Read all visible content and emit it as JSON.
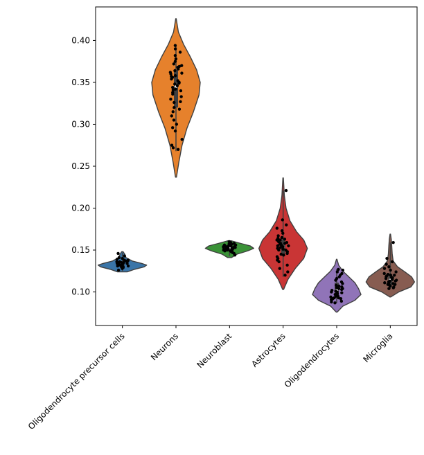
{
  "chart_data": {
    "type": "violin",
    "categories": [
      "Oligodendrocyte precursor cells",
      "Neurons",
      "Neuroblast",
      "Astrocytes",
      "Oligodendrocytes",
      "Microglia"
    ],
    "colors": [
      "#3a75a8",
      "#e6812c",
      "#3a9237",
      "#c93535",
      "#9074b8",
      "#875c51"
    ],
    "ylim": [
      0.06,
      0.44
    ],
    "yticks": [
      0.1,
      0.15,
      0.2,
      0.25,
      0.3,
      0.35,
      0.4
    ],
    "ytick_labels": [
      "0.10",
      "0.15",
      "0.20",
      "0.25",
      "0.30",
      "0.35",
      "0.40"
    ],
    "xlabel": "",
    "ylabel": "",
    "title": "",
    "grid": false,
    "series": [
      {
        "min": 0.125,
        "max": 0.147,
        "q1": 0.13,
        "median": 0.133,
        "q3": 0.137,
        "density": [
          [
            0.124,
            0.2
          ],
          [
            0.127,
            0.5
          ],
          [
            0.13,
            0.9
          ],
          [
            0.132,
            1.0
          ],
          [
            0.134,
            0.8
          ],
          [
            0.137,
            0.4
          ],
          [
            0.141,
            0.15
          ],
          [
            0.145,
            0.1
          ],
          [
            0.148,
            0.03
          ]
        ],
        "points": [
          0.128,
          0.13,
          0.131,
          0.132,
          0.133,
          0.133,
          0.134,
          0.134,
          0.135,
          0.135,
          0.136,
          0.137,
          0.138,
          0.139,
          0.14,
          0.141,
          0.143,
          0.146,
          0.129,
          0.132,
          0.134,
          0.136,
          0.137,
          0.131,
          0.135,
          0.133,
          0.138,
          0.126,
          0.13,
          0.134
        ]
      },
      {
        "min": 0.268,
        "max": 0.395,
        "q1": 0.32,
        "median": 0.345,
        "q3": 0.365,
        "density": [
          [
            0.237,
            0.02
          ],
          [
            0.255,
            0.12
          ],
          [
            0.275,
            0.25
          ],
          [
            0.295,
            0.45
          ],
          [
            0.315,
            0.72
          ],
          [
            0.335,
            0.95
          ],
          [
            0.35,
            1.0
          ],
          [
            0.365,
            0.85
          ],
          [
            0.38,
            0.6
          ],
          [
            0.395,
            0.32
          ],
          [
            0.41,
            0.1
          ],
          [
            0.426,
            0.01
          ]
        ],
        "points": [
          0.27,
          0.272,
          0.275,
          0.282,
          0.292,
          0.296,
          0.3,
          0.305,
          0.31,
          0.318,
          0.32,
          0.326,
          0.33,
          0.333,
          0.336,
          0.34,
          0.342,
          0.344,
          0.346,
          0.348,
          0.35,
          0.352,
          0.354,
          0.356,
          0.358,
          0.36,
          0.362,
          0.364,
          0.366,
          0.368,
          0.37,
          0.372,
          0.375,
          0.378,
          0.382,
          0.386,
          0.39,
          0.394,
          0.315,
          0.338,
          0.349,
          0.357,
          0.341,
          0.369,
          0.327,
          0.361
        ]
      },
      {
        "min": 0.143,
        "max": 0.16,
        "q1": 0.15,
        "median": 0.153,
        "q3": 0.155,
        "density": [
          [
            0.141,
            0.08
          ],
          [
            0.145,
            0.3
          ],
          [
            0.149,
            0.75
          ],
          [
            0.152,
            1.0
          ],
          [
            0.155,
            0.85
          ],
          [
            0.158,
            0.45
          ],
          [
            0.161,
            0.08
          ]
        ],
        "points": [
          0.144,
          0.146,
          0.147,
          0.148,
          0.149,
          0.15,
          0.15,
          0.151,
          0.151,
          0.152,
          0.152,
          0.153,
          0.153,
          0.153,
          0.154,
          0.154,
          0.155,
          0.155,
          0.156,
          0.156,
          0.157,
          0.158,
          0.159,
          0.16,
          0.149,
          0.152,
          0.154,
          0.151,
          0.153,
          0.155,
          0.15,
          0.157
        ]
      },
      {
        "min": 0.118,
        "max": 0.221,
        "q1": 0.143,
        "median": 0.154,
        "q3": 0.163,
        "density": [
          [
            0.103,
            0.02
          ],
          [
            0.115,
            0.2
          ],
          [
            0.128,
            0.5
          ],
          [
            0.14,
            0.85
          ],
          [
            0.152,
            1.0
          ],
          [
            0.162,
            0.85
          ],
          [
            0.172,
            0.55
          ],
          [
            0.185,
            0.28
          ],
          [
            0.2,
            0.12
          ],
          [
            0.215,
            0.05
          ],
          [
            0.236,
            0.01
          ]
        ],
        "points": [
          0.12,
          0.124,
          0.128,
          0.132,
          0.136,
          0.138,
          0.14,
          0.142,
          0.144,
          0.146,
          0.148,
          0.15,
          0.151,
          0.152,
          0.153,
          0.154,
          0.155,
          0.156,
          0.157,
          0.158,
          0.159,
          0.16,
          0.161,
          0.162,
          0.163,
          0.164,
          0.165,
          0.167,
          0.17,
          0.173,
          0.176,
          0.18,
          0.186,
          0.221,
          0.145,
          0.155,
          0.15,
          0.158,
          0.162
        ]
      },
      {
        "min": 0.087,
        "max": 0.127,
        "q1": 0.093,
        "median": 0.102,
        "q3": 0.111,
        "density": [
          [
            0.076,
            0.02
          ],
          [
            0.083,
            0.25
          ],
          [
            0.09,
            0.75
          ],
          [
            0.097,
            1.0
          ],
          [
            0.104,
            0.9
          ],
          [
            0.111,
            0.75
          ],
          [
            0.118,
            0.5
          ],
          [
            0.125,
            0.25
          ],
          [
            0.132,
            0.08
          ],
          [
            0.139,
            0.01
          ]
        ],
        "points": [
          0.087,
          0.088,
          0.089,
          0.09,
          0.091,
          0.092,
          0.093,
          0.094,
          0.095,
          0.096,
          0.097,
          0.098,
          0.099,
          0.1,
          0.101,
          0.102,
          0.103,
          0.104,
          0.105,
          0.106,
          0.107,
          0.108,
          0.11,
          0.112,
          0.114,
          0.116,
          0.118,
          0.12,
          0.122,
          0.124,
          0.126,
          0.127,
          0.092,
          0.095,
          0.1,
          0.104,
          0.098,
          0.093
        ]
      },
      {
        "min": 0.104,
        "max": 0.159,
        "q1": 0.108,
        "median": 0.114,
        "q3": 0.121,
        "density": [
          [
            0.094,
            0.02
          ],
          [
            0.1,
            0.35
          ],
          [
            0.106,
            0.85
          ],
          [
            0.112,
            1.0
          ],
          [
            0.118,
            0.88
          ],
          [
            0.124,
            0.6
          ],
          [
            0.13,
            0.3
          ],
          [
            0.137,
            0.12
          ],
          [
            0.145,
            0.08
          ],
          [
            0.155,
            0.06
          ],
          [
            0.163,
            0.04
          ],
          [
            0.169,
            0.01
          ]
        ],
        "points": [
          0.104,
          0.105,
          0.106,
          0.107,
          0.108,
          0.109,
          0.11,
          0.111,
          0.112,
          0.113,
          0.114,
          0.115,
          0.116,
          0.117,
          0.118,
          0.119,
          0.12,
          0.121,
          0.122,
          0.124,
          0.126,
          0.128,
          0.13,
          0.133,
          0.136,
          0.14,
          0.159,
          0.109,
          0.113,
          0.117,
          0.111,
          0.12
        ]
      }
    ]
  }
}
